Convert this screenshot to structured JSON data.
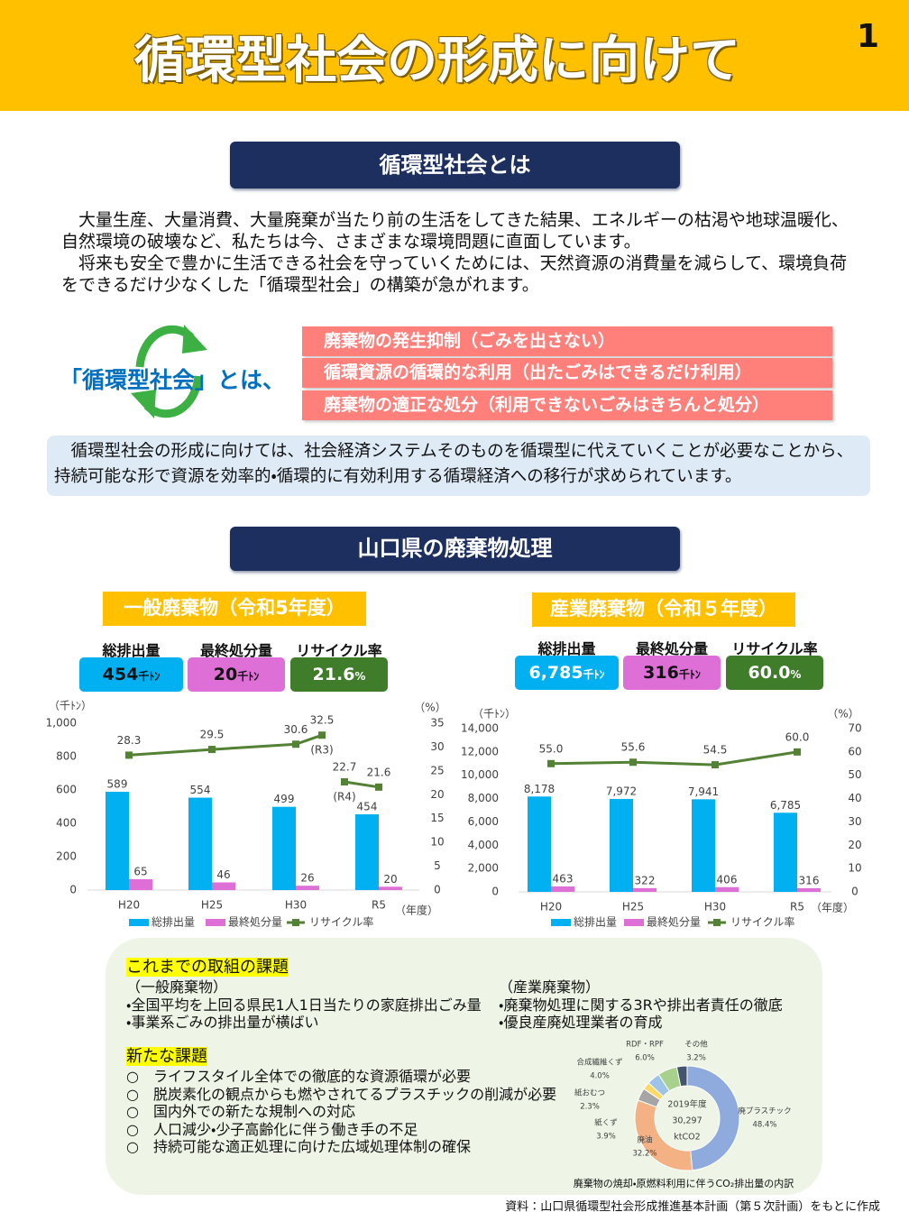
{
  "header": {
    "title": "循環型社会の形成に向けて",
    "page_number": "1"
  },
  "section1": {
    "heading": "循環型社会とは",
    "paragraphs": [
      "大量生産、大量消費、大量廃棄が当たり前の生活をしてきた結果、エネルギーの枯渇や地球温暖化、自然環境の破壊など、私たちは今、さまざまな環境問題に直面しています。",
      "将来も安全で豊かに生活できる社会を守っていくためには、天然資源の消費量を減らして、環境負荷をできるだけ少なくした「循環型社会」の構築が急がれます。"
    ],
    "cycle_label": "「循環型社会」とは、",
    "pillars": [
      "廃棄物の発生抑制（ごみを出さない）",
      "循環資源の循環的な利用（出たごみはできるだけ利用）",
      "廃棄物の適正な処分（利用できないごみはきちんと処分）"
    ],
    "summary": "循環型社会の形成に向けては、社会経済システムそのものを循環型に代えていくことが必要なことから、持続可能な形で資源を効率的・循環的に有効利用する循環経済への移行が求められています。"
  },
  "section2": {
    "heading": "山口県の廃棄物処理",
    "panels": [
      {
        "title": "一般廃棄物（令和5年度）",
        "stats": [
          {
            "label": "総排出量",
            "value": "454",
            "unit": "千ﾄﾝ"
          },
          {
            "label": "最終処分量",
            "value": "20",
            "unit": "千ﾄﾝ"
          },
          {
            "label": "リサイクル率",
            "value": "21.6",
            "unit": "%"
          }
        ]
      },
      {
        "title": "産業廃棄物（令和５年度）",
        "stats": [
          {
            "label": "総排出量",
            "value": "6,785",
            "unit": "千ﾄﾝ"
          },
          {
            "label": "最終処分量",
            "value": "316",
            "unit": "千ﾄﾝ"
          },
          {
            "label": "リサイクル率",
            "value": "60.0",
            "unit": "%"
          }
        ]
      }
    ]
  },
  "chart_data": [
    {
      "type": "bar",
      "categories": [
        "H20",
        "H25",
        "H30",
        null,
        null,
        null,
        "R5"
      ],
      "series": [
        {
          "name": "総排出量",
          "color": "#00b0f0",
          "values": [
            589,
            554,
            499,
            null,
            null,
            null,
            454
          ]
        },
        {
          "name": "最終処分量",
          "color": "#dd6fd6",
          "values": [
            65,
            46,
            26,
            null,
            null,
            null,
            20
          ]
        },
        {
          "name": "リサイクル率",
          "type": "line",
          "axis": "y2",
          "color": "#548235",
          "values": [
            28.3,
            29.5,
            30.6,
            32.5,
            null,
            22.7,
            21.6
          ],
          "point_labels": [
            null,
            null,
            null,
            "(R3)",
            null,
            "(R4)",
            null
          ]
        }
      ],
      "ylim": [
        0,
        1000
      ],
      "yticks": [
        0,
        200,
        400,
        600,
        800,
        {
          "value": 1000,
          "label": "1,000"
        }
      ],
      "y2lim": [
        0,
        35
      ],
      "y2ticks": [
        0,
        5,
        10,
        15,
        20,
        25,
        30,
        35
      ],
      "y_unit": "（千ﾄﾝ）",
      "y2_unit": "（%）",
      "x_unit": "（年度）",
      "legend": "bottom"
    },
    {
      "type": "bar",
      "categories": [
        "H20",
        "H25",
        "H30",
        "R5"
      ],
      "series": [
        {
          "name": "総排出量",
          "color": "#00b0f0",
          "values": [
            8178,
            7972,
            7941,
            6785
          ],
          "value_labels": [
            "8,178",
            "7,972",
            "7,941",
            "6,785"
          ]
        },
        {
          "name": "最終処分量",
          "color": "#dd6fd6",
          "values": [
            463,
            322,
            406,
            316
          ]
        },
        {
          "name": "リサイクル率",
          "type": "line",
          "axis": "y2",
          "color": "#548235",
          "values": [
            55.0,
            55.6,
            54.5,
            60.0
          ],
          "value_labels": [
            "55.0",
            "55.6",
            "54.5",
            "60.0"
          ]
        }
      ],
      "ylim": [
        0,
        14000
      ],
      "yticks": [
        0,
        {
          "value": 2000,
          "label": "2,000"
        },
        {
          "value": 4000,
          "label": "4,000"
        },
        {
          "value": 6000,
          "label": "6,000"
        },
        {
          "value": 8000,
          "label": "8,000"
        },
        {
          "value": 10000,
          "label": "10,000"
        },
        {
          "value": 12000,
          "label": "12,000"
        },
        {
          "value": 14000,
          "label": "14,000"
        }
      ],
      "y2lim": [
        0,
        70
      ],
      "y2ticks": [
        0,
        10,
        20,
        30,
        40,
        50,
        60,
        70
      ],
      "y_unit": "（千ﾄﾝ）",
      "y2_unit": "（%）",
      "x_unit": "（年度）",
      "legend": "bottom"
    },
    {
      "type": "pie",
      "donut": true,
      "center_labels": [
        "2019年度",
        "30,297",
        "ktCO2"
      ],
      "categories": [
        "廃プラスチック",
        "廃油",
        "紙くず",
        "紙おむつ",
        "合成繊維くず",
        "RDF・RPF",
        "その他"
      ],
      "values": [
        48.4,
        32.2,
        3.9,
        2.3,
        4.0,
        6.0,
        3.2
      ],
      "value_labels": [
        "48.4%",
        "32.2%",
        "3.9%",
        "2.3%",
        "4.0%",
        "6.0%",
        "3.2%"
      ],
      "colors": [
        "#8faadc",
        "#f4b183",
        "#a5a5a5",
        "#ffd966",
        "#9dc3e6",
        "#a9d18e",
        "#44546a"
      ],
      "caption": "廃棄物の焼却・原燃料利用に伴うCO₂排出量の内訳"
    }
  ],
  "challenges": {
    "heading": "これまでの取組の課題",
    "columns": [
      {
        "heading": "（一般廃棄物）",
        "items": [
          "・全国平均を上回る県民1人1日当たりの家庭排出ごみ量",
          "・事業系ごみの排出量が横ばい"
        ]
      },
      {
        "heading": "（産業廃棄物）",
        "items": [
          "・廃棄物処理に関する3Rや排出者責任の徹底",
          "・優良産廃処理業者の育成"
        ]
      }
    ],
    "new_heading": "新たな課題",
    "new_items": [
      "ライフスタイル全体での徹底的な資源循環が必要",
      "脱炭素化の観点からも燃やされてるプラスチックの削減が必要",
      "国内外での新たな規制への対応",
      "人口減少・少子高齢化に伴う働き手の不足",
      "持続可能な適正処理に向けた広域処理体制の確保"
    ]
  },
  "source": "資料：山口県循環型社会形成推進基本計画（第５次計画）をもとに作成"
}
